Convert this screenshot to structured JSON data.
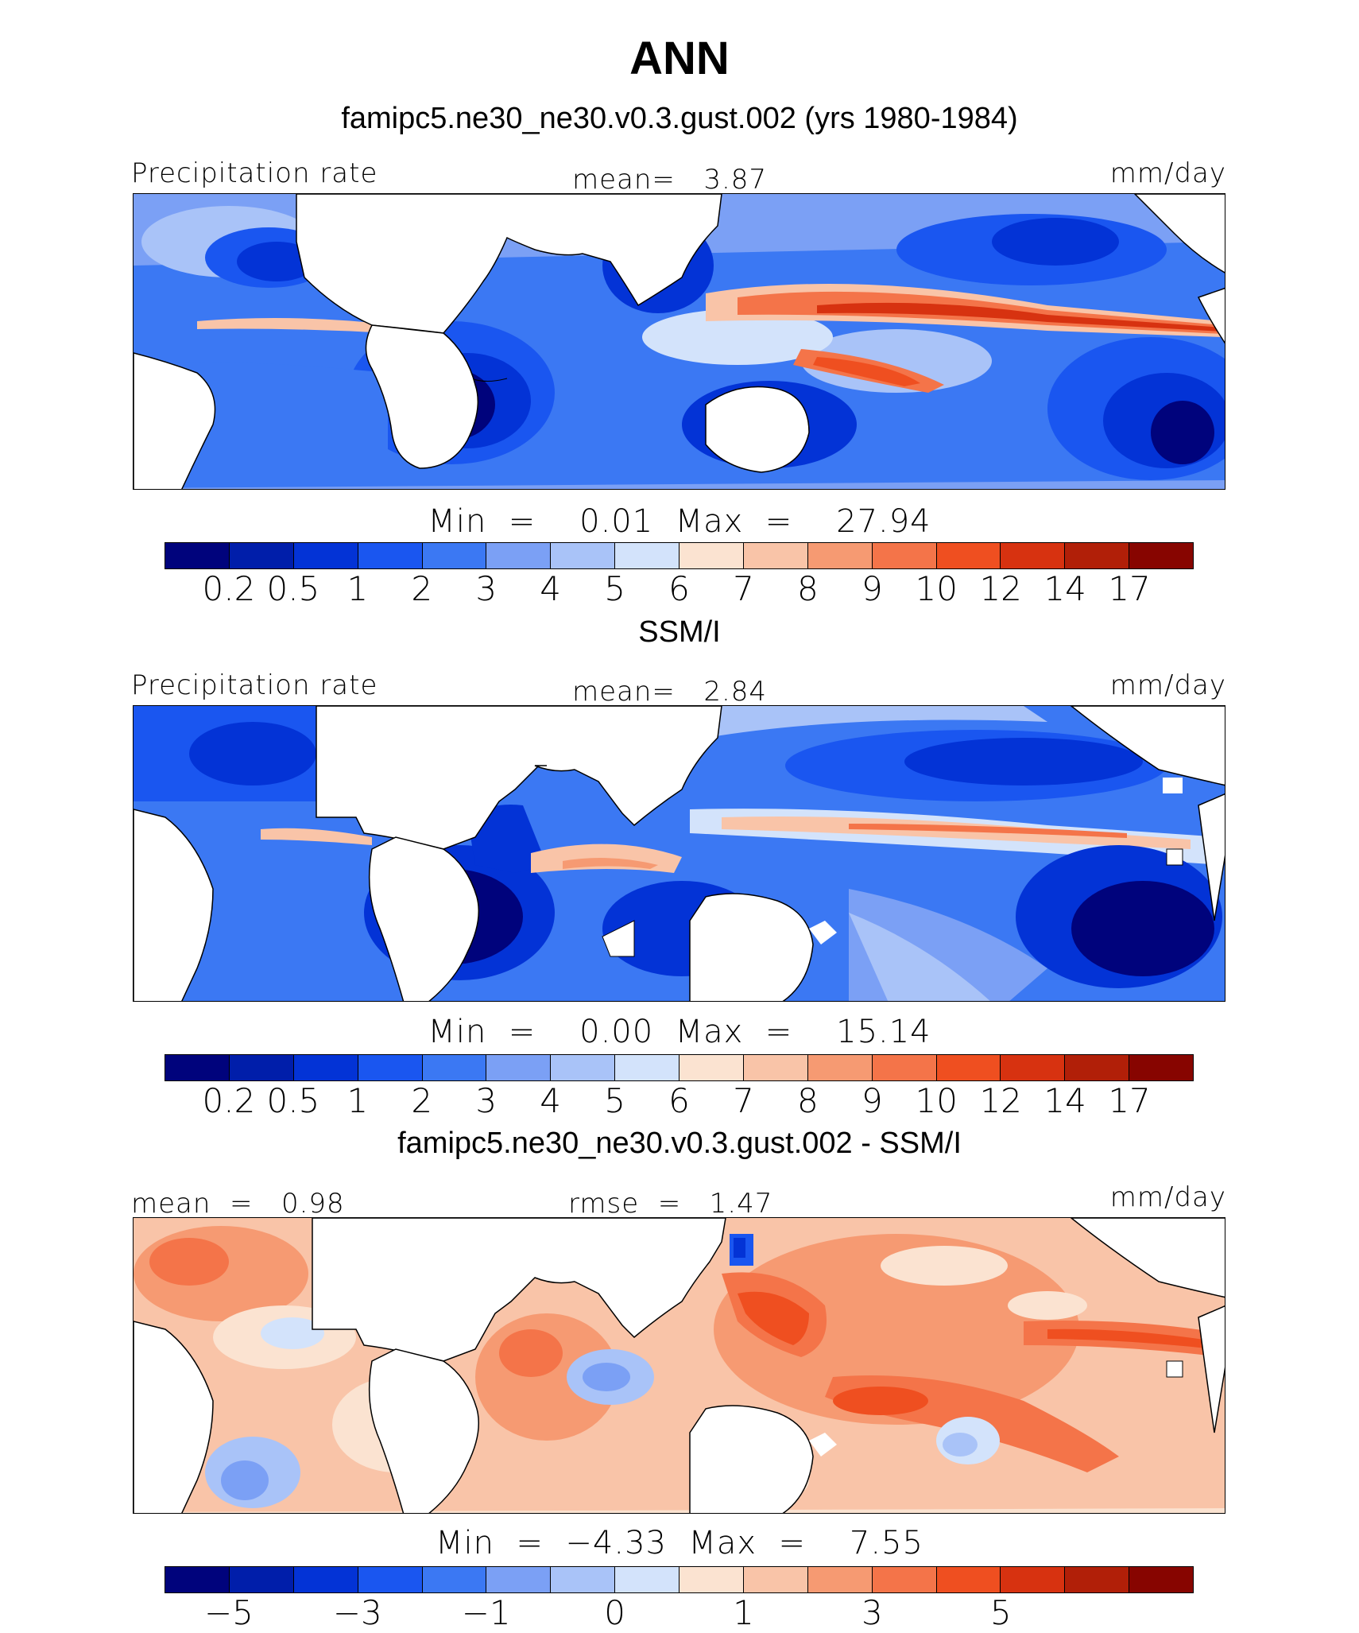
{
  "figure": {
    "season": "ANN",
    "colors": {
      "abs_scale": [
        "#00037c",
        "#001eaa",
        "#0333d6",
        "#1a56f0",
        "#3b78f3",
        "#7ba0f5",
        "#a9c3f8",
        "#d3e3fb",
        "#fbe3d1",
        "#f9c4a8",
        "#f69a72",
        "#f47449",
        "#ef4f20",
        "#d73210",
        "#b11f08",
        "#870500"
      ],
      "diff_scale": [
        "#00037c",
        "#001eaa",
        "#0333d6",
        "#1a56f0",
        "#3b78f3",
        "#7ba0f5",
        "#a9c3f8",
        "#d3e3fb",
        "#fbe3d1",
        "#f9c4a8",
        "#f69a72",
        "#f47449",
        "#ef4f20",
        "#d73210",
        "#b11f08",
        "#870500"
      ]
    }
  },
  "panels": [
    {
      "title": "famipc5.ne30_ne30.v0.3.gust.002 (yrs 1980-1984)",
      "left_label": "Precipitation rate",
      "center_label": "mean=   3.87",
      "units": "mm/day",
      "minmax": "Min  =    0.01  Max  =    27.94",
      "colorbar_labels": [
        "0.2",
        "0.5",
        "1",
        "2",
        "3",
        "4",
        "5",
        "6",
        "7",
        "8",
        "9",
        "10",
        "12",
        "14",
        "17"
      ]
    },
    {
      "title": "SSM/I",
      "left_label": "Precipitation rate",
      "center_label": "mean=   2.84",
      "units": "mm/day",
      "minmax": "Min  =    0.00  Max  =    15.14",
      "colorbar_labels": [
        "0.2",
        "0.5",
        "1",
        "2",
        "3",
        "4",
        "5",
        "6",
        "7",
        "8",
        "9",
        "10",
        "12",
        "14",
        "17"
      ]
    },
    {
      "title": "famipc5.ne30_ne30.v0.3.gust.002 - SSM/I",
      "left_label": "mean  =   0.98",
      "center_label": "rmse  =   1.47",
      "units": "mm/day",
      "minmax": "Min  =  −4.33  Max  =    7.55",
      "colorbar_labels": [
        "−5",
        "−3",
        "−1",
        "0",
        "1",
        "3",
        "5"
      ]
    }
  ]
}
